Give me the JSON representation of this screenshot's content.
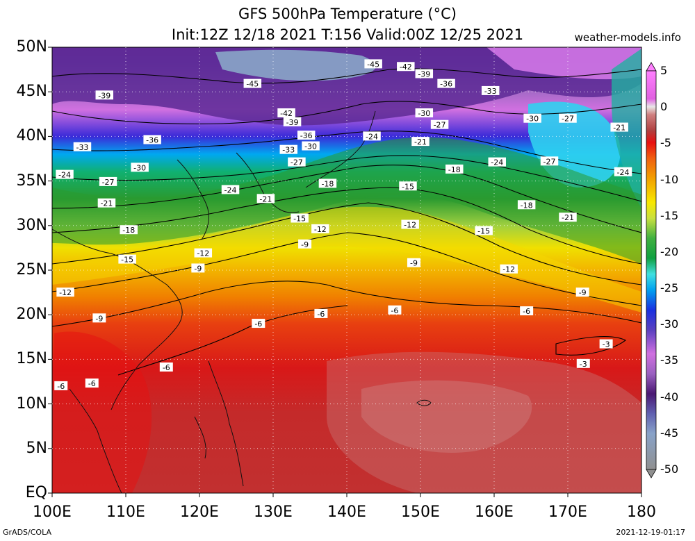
{
  "header": {
    "title_line1": "GFS 500hPa Temperature (°C)",
    "title_line2": "Init:12Z 12/18 2021 T:156 Valid:00Z 12/25 2021",
    "brand": "weather-models.info"
  },
  "map": {
    "lat_labels": [
      "50N",
      "45N",
      "40N",
      "35N",
      "30N",
      "25N",
      "20N",
      "15N",
      "10N",
      "5N",
      "EQ"
    ],
    "lon_labels": [
      "100E",
      "110E",
      "120E",
      "130E",
      "140E",
      "150E",
      "160E",
      "170E",
      "180"
    ],
    "contour_labels": [
      {
        "text": "-45",
        "lon": 127.2,
        "lat": 45.9
      },
      {
        "text": "-45",
        "lon": 143.6,
        "lat": 48.1
      },
      {
        "text": "-42",
        "lon": 148.0,
        "lat": 47.8
      },
      {
        "text": "-39",
        "lon": 150.5,
        "lat": 47.0
      },
      {
        "text": "-36",
        "lon": 153.5,
        "lat": 45.9
      },
      {
        "text": "-33",
        "lon": 159.5,
        "lat": 45.1
      },
      {
        "text": "-39",
        "lon": 107.1,
        "lat": 44.6
      },
      {
        "text": "-42",
        "lon": 131.8,
        "lat": 42.6
      },
      {
        "text": "-39",
        "lon": 132.6,
        "lat": 41.6
      },
      {
        "text": "-30",
        "lon": 150.5,
        "lat": 42.6
      },
      {
        "text": "-27",
        "lon": 152.6,
        "lat": 41.3
      },
      {
        "text": "-30",
        "lon": 165.2,
        "lat": 42.0
      },
      {
        "text": "-27",
        "lon": 170.0,
        "lat": 42.0
      },
      {
        "text": "-21",
        "lon": 177.0,
        "lat": 41.0
      },
      {
        "text": "-36",
        "lon": 134.5,
        "lat": 40.1
      },
      {
        "text": "-24",
        "lon": 143.4,
        "lat": 40.0
      },
      {
        "text": "-21",
        "lon": 150.0,
        "lat": 39.4
      },
      {
        "text": "-36",
        "lon": 113.6,
        "lat": 39.6
      },
      {
        "text": "-30",
        "lon": 135.1,
        "lat": 38.9
      },
      {
        "text": "-33",
        "lon": 104.1,
        "lat": 38.8
      },
      {
        "text": "-33",
        "lon": 132.1,
        "lat": 38.5
      },
      {
        "text": "-27",
        "lon": 133.2,
        "lat": 37.1
      },
      {
        "text": "-24",
        "lon": 160.4,
        "lat": 37.1
      },
      {
        "text": "-27",
        "lon": 167.5,
        "lat": 37.2
      },
      {
        "text": "-30",
        "lon": 111.9,
        "lat": 36.5
      },
      {
        "text": "-18",
        "lon": 154.6,
        "lat": 36.3
      },
      {
        "text": "-24",
        "lon": 177.5,
        "lat": 36.0
      },
      {
        "text": "-24",
        "lon": 101.7,
        "lat": 35.7
      },
      {
        "text": "-27",
        "lon": 107.6,
        "lat": 34.9
      },
      {
        "text": "-18",
        "lon": 137.4,
        "lat": 34.7
      },
      {
        "text": "-15",
        "lon": 148.3,
        "lat": 34.4
      },
      {
        "text": "-24",
        "lon": 124.2,
        "lat": 34.0
      },
      {
        "text": "-21",
        "lon": 107.4,
        "lat": 32.5
      },
      {
        "text": "-21",
        "lon": 129.0,
        "lat": 33.0
      },
      {
        "text": "-18",
        "lon": 164.4,
        "lat": 32.3
      },
      {
        "text": "-15",
        "lon": 133.6,
        "lat": 30.8
      },
      {
        "text": "-21",
        "lon": 170.0,
        "lat": 30.9
      },
      {
        "text": "-12",
        "lon": 148.6,
        "lat": 30.1
      },
      {
        "text": "-18",
        "lon": 110.4,
        "lat": 29.5
      },
      {
        "text": "-12",
        "lon": 136.4,
        "lat": 29.6
      },
      {
        "text": "-15",
        "lon": 158.6,
        "lat": 29.4
      },
      {
        "text": "-9",
        "lon": 134.3,
        "lat": 27.9
      },
      {
        "text": "-12",
        "lon": 120.5,
        "lat": 26.9
      },
      {
        "text": "-15",
        "lon": 110.2,
        "lat": 26.2
      },
      {
        "text": "-9",
        "lon": 149.1,
        "lat": 25.8
      },
      {
        "text": "-9",
        "lon": 119.8,
        "lat": 25.2
      },
      {
        "text": "-12",
        "lon": 162.0,
        "lat": 25.1
      },
      {
        "text": "-12",
        "lon": 101.8,
        "lat": 22.5
      },
      {
        "text": "-9",
        "lon": 172.0,
        "lat": 22.5
      },
      {
        "text": "-6",
        "lon": 146.5,
        "lat": 20.5
      },
      {
        "text": "-6",
        "lon": 164.4,
        "lat": 20.4
      },
      {
        "text": "-9",
        "lon": 106.4,
        "lat": 19.6
      },
      {
        "text": "-6",
        "lon": 136.5,
        "lat": 20.1
      },
      {
        "text": "-6",
        "lon": 128.0,
        "lat": 19.0
      },
      {
        "text": "-3",
        "lon": 175.2,
        "lat": 16.7
      },
      {
        "text": "-6",
        "lon": 115.5,
        "lat": 14.1
      },
      {
        "text": "-3",
        "lon": 172.1,
        "lat": 14.5
      },
      {
        "text": "-6",
        "lon": 101.2,
        "lat": 12.0
      },
      {
        "text": "-6",
        "lon": 105.4,
        "lat": 12.3
      }
    ],
    "colors": [
      "#ef8aff",
      "#cc48d2",
      "#9b55c0",
      "#4a1873",
      "#5b3ba3",
      "#88a2c8",
      "#49e0e0",
      "#00c8f0",
      "#1a4cff",
      "#1a40c8",
      "#10a040",
      "#2a9a30",
      "#8acc30",
      "#f0e000",
      "#f2b400",
      "#f08000",
      "#e84010",
      "#d81818",
      "#c83838",
      "#b44848",
      "#c06868"
    ]
  },
  "colorbar": {
    "labels": [
      "5",
      "0",
      "-5",
      "-10",
      "-15",
      "-20",
      "-25",
      "-30",
      "-35",
      "-40",
      "-45",
      "-50"
    ]
  },
  "footer": {
    "left": "GrADS/COLA",
    "right": "2021-12-19-01:17"
  }
}
